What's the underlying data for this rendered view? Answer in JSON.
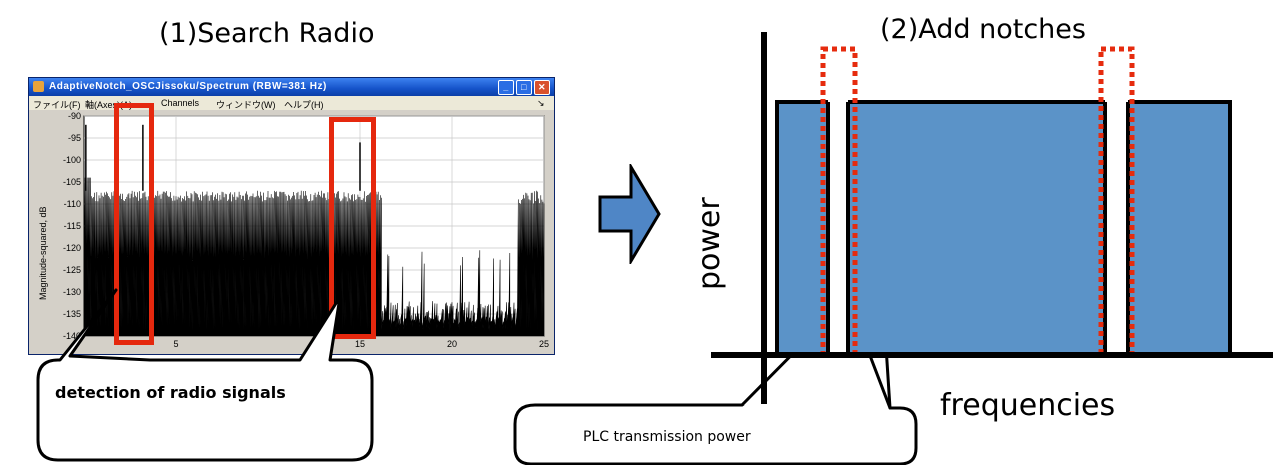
{
  "left_panel": {
    "title": "(1)Search Radio",
    "window": {
      "title": "AdaptiveNotch_OSCJissoku/Spectrum (RBW=381 Hz)",
      "menu": [
        "ファイル(F)",
        "軸(Axes)(A)",
        "Channels",
        "ウィンドウ(W)",
        "ヘルプ(H)"
      ],
      "y_axis_label": "Magnitude-squared, dB"
    },
    "callout": "detection of radio signals"
  },
  "right_panel": {
    "title": "(2)Add notches",
    "y_axis_label": "power",
    "x_axis_label": "frequencies",
    "callout": "PLC transmission power"
  },
  "chart_data": {
    "type": "line",
    "ylabel": "Magnitude-squared, dB",
    "xlim": [
      0,
      25
    ],
    "ylim": [
      -140,
      -90
    ],
    "x_ticks": [
      5,
      15,
      20,
      25
    ],
    "y_ticks": [
      -90,
      -95,
      -100,
      -105,
      -110,
      -115,
      -120,
      -125,
      -130,
      -135,
      -140
    ],
    "peaks": [
      {
        "x": 0.1,
        "y": -92
      },
      {
        "x": 3.2,
        "y": -92
      },
      {
        "x": 15.0,
        "y": -96
      }
    ],
    "noise_floor_high": -107,
    "noise_floor_low": -137,
    "grid": true
  },
  "colors": {
    "signal_rect": "#5b93c8",
    "notch_outline": "#e62b0e",
    "arrow_fill": "#4f86c6",
    "marker_red": "#e5280e"
  }
}
